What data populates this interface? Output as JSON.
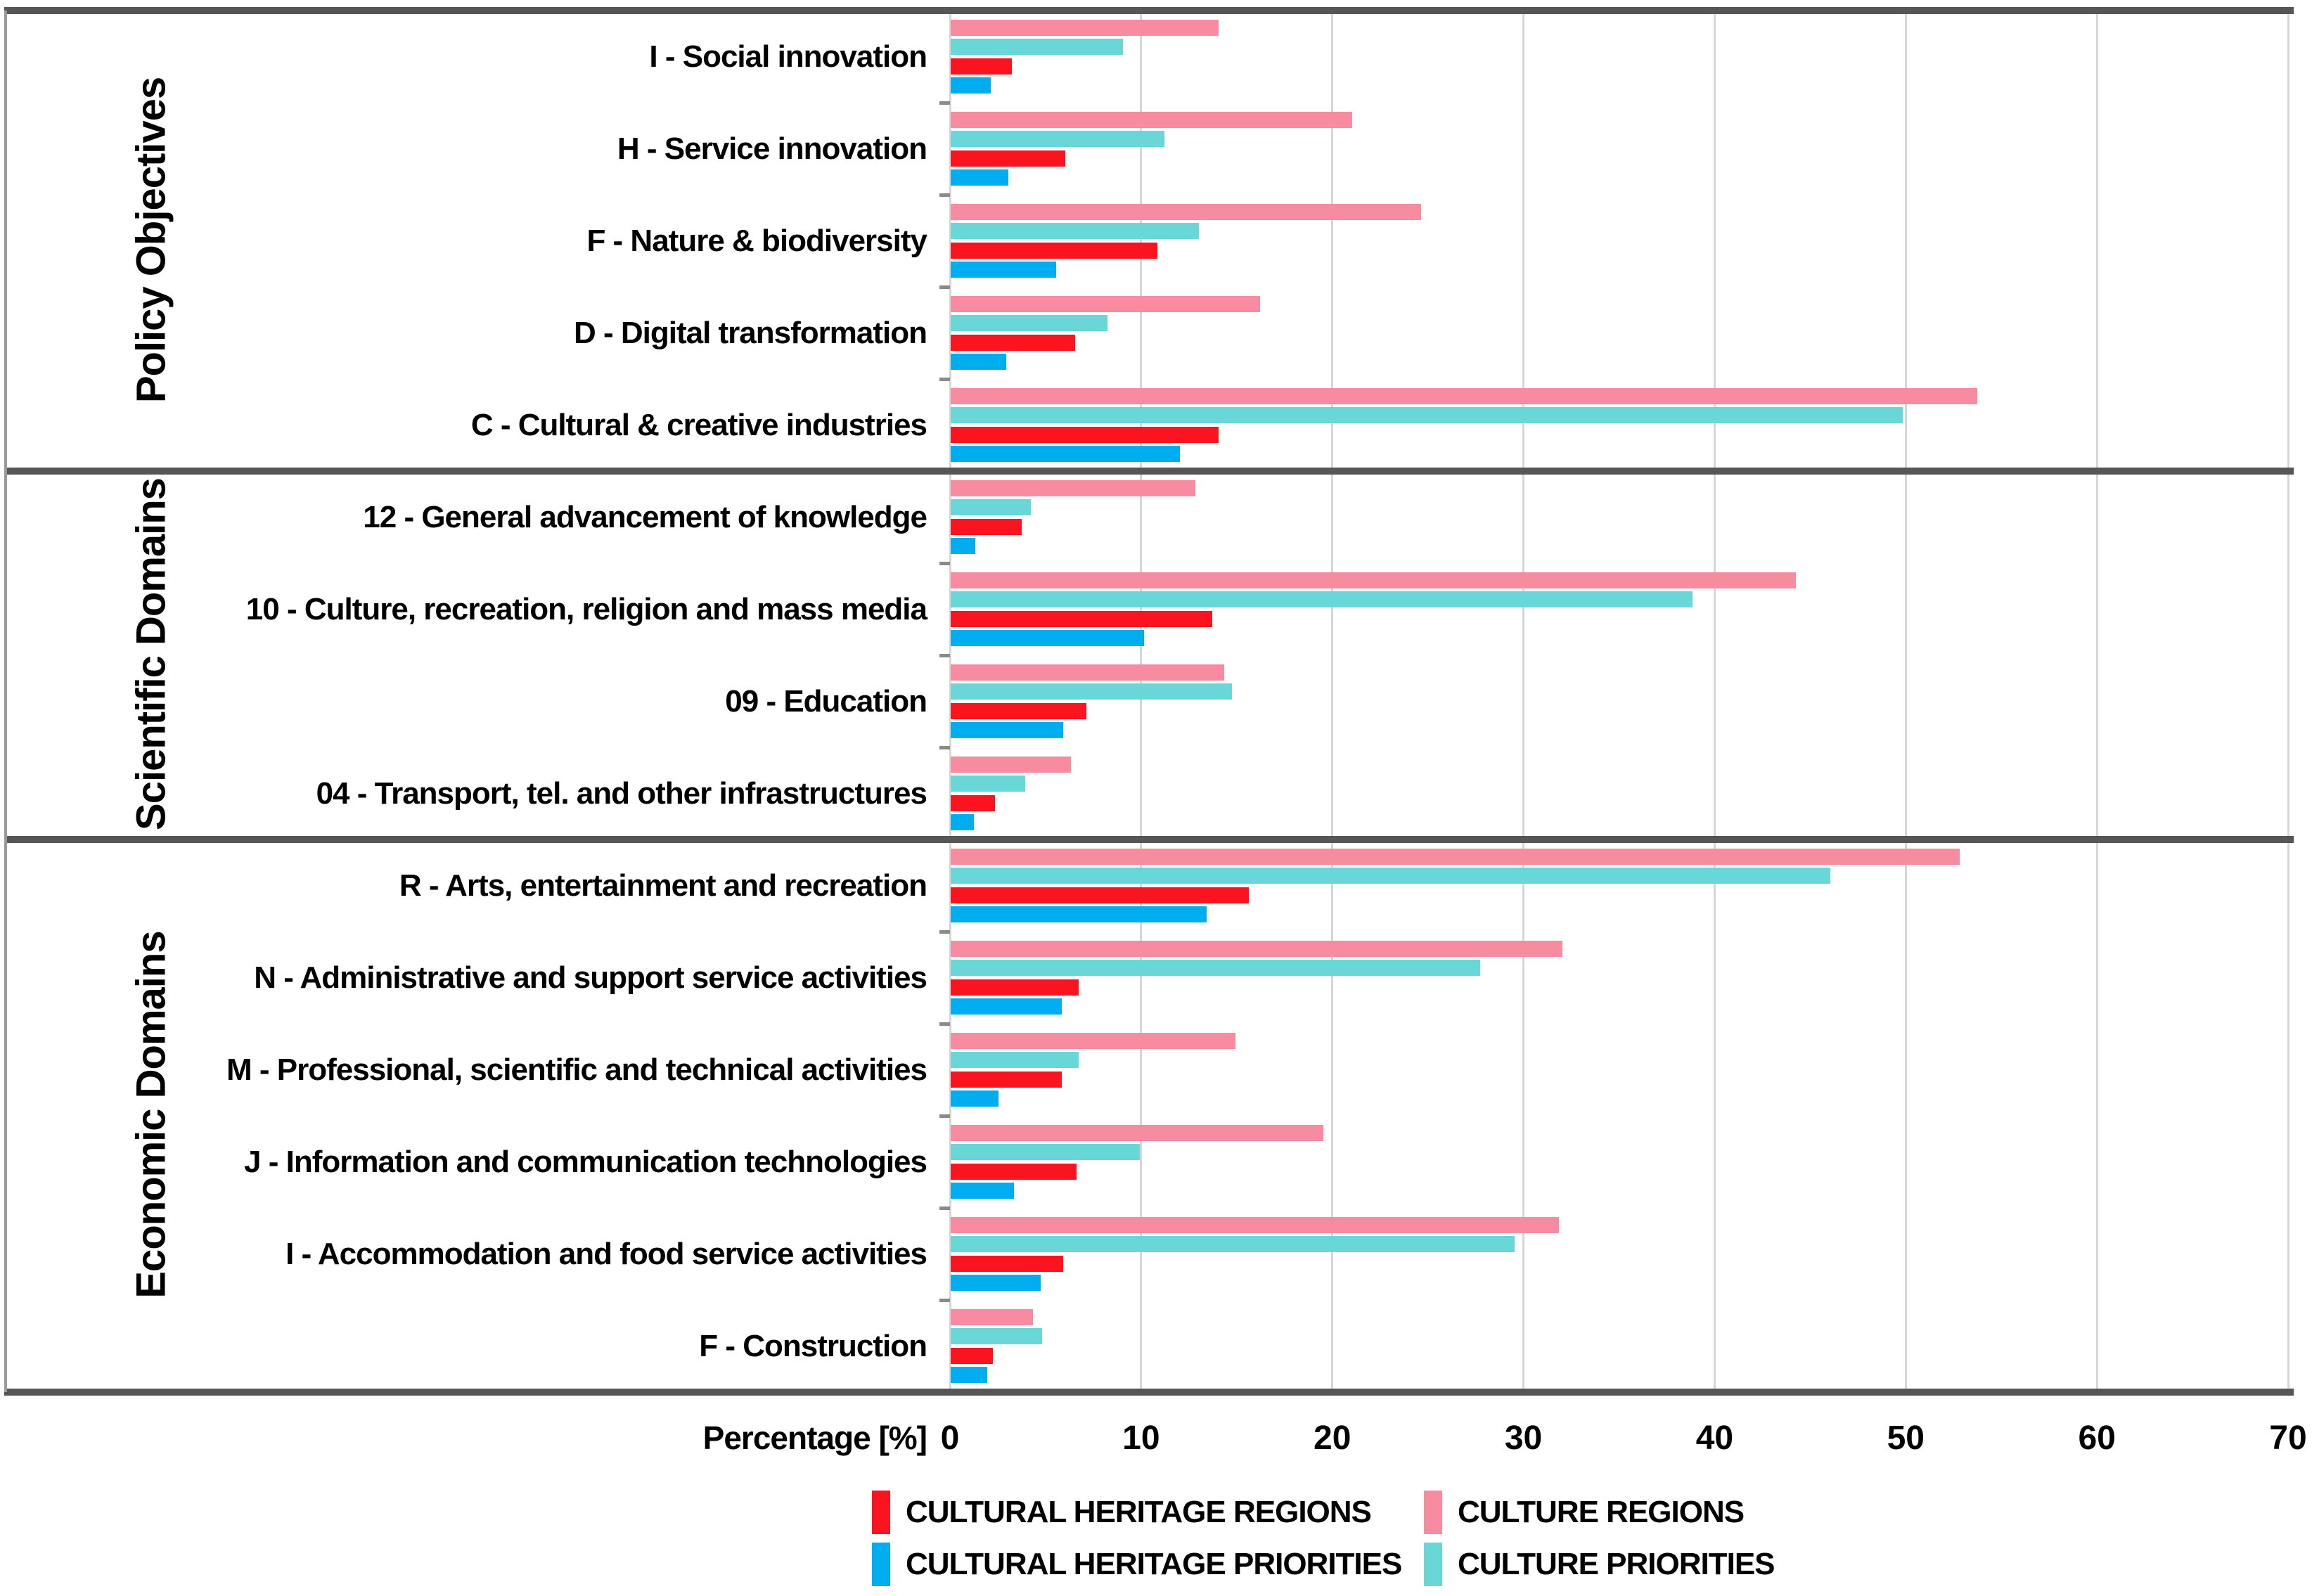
{
  "chart_data": {
    "type": "bar",
    "orientation": "horizontal-grouped",
    "title": "",
    "xlabel": "Percentage [%]",
    "xlim": [
      0,
      70
    ],
    "xticks": [
      0,
      10,
      20,
      30,
      40,
      50,
      60,
      70
    ],
    "grid": "vertical-light-gray",
    "legend_position": "bottom",
    "sections": [
      {
        "label": "Policy Objectives",
        "categories": [
          "I - Social innovation",
          "H - Service innovation",
          "F - Nature & biodiversity",
          "D - Digital transformation",
          "C - Cultural & creative industries"
        ]
      },
      {
        "label": "Scientific Domains",
        "categories": [
          "12 - General advancement of knowledge",
          "10 - Culture, recreation, religion and mass media",
          "09 - Education",
          "04 - Transport, tel. and other infrastructures"
        ]
      },
      {
        "label": "Economic Domains",
        "categories": [
          "R - Arts, entertainment and recreation",
          "N - Administrative and support service activities",
          "M - Professional, scientific and technical activities",
          "J - Information and communication technologies",
          "I - Accommodation and food service activities",
          "F - Construction"
        ]
      }
    ],
    "series": [
      {
        "name": "CULTURE REGIONS",
        "color": "#F78CA0",
        "values": [
          14.0,
          21.0,
          24.6,
          16.2,
          53.7,
          12.8,
          44.2,
          14.3,
          6.3,
          52.8,
          32.0,
          14.9,
          19.5,
          31.8,
          4.3
        ]
      },
      {
        "name": "CULTURE PRIORITIES",
        "color": "#69D6D8",
        "values": [
          9.0,
          11.2,
          13.0,
          8.2,
          49.8,
          4.2,
          38.8,
          14.7,
          3.9,
          46.0,
          27.7,
          6.7,
          9.9,
          29.5,
          4.8
        ]
      },
      {
        "name": "CULTURAL HERITAGE REGIONS",
        "color": "#FA141F",
        "values": [
          3.2,
          6.0,
          10.8,
          6.5,
          14.0,
          3.7,
          13.7,
          7.1,
          2.3,
          15.6,
          6.7,
          5.8,
          6.6,
          5.9,
          2.2
        ]
      },
      {
        "name": "CULTURAL HERITAGE PRIORITIES",
        "color": "#00AEEF",
        "values": [
          2.1,
          3.0,
          5.5,
          2.9,
          12.0,
          1.3,
          10.1,
          5.9,
          1.2,
          13.4,
          5.8,
          2.5,
          3.3,
          4.7,
          1.9
        ]
      }
    ],
    "legend": [
      {
        "label": "CULTURAL HERITAGE REGIONS",
        "color": "#FA141F"
      },
      {
        "label": "CULTURE REGIONS",
        "color": "#F78CA0"
      },
      {
        "label": "CULTURAL HERITAGE PRIORITIES",
        "color": "#00AEEF"
      },
      {
        "label": "CULTURE PRIORITIES",
        "color": "#69D6D8"
      }
    ]
  }
}
